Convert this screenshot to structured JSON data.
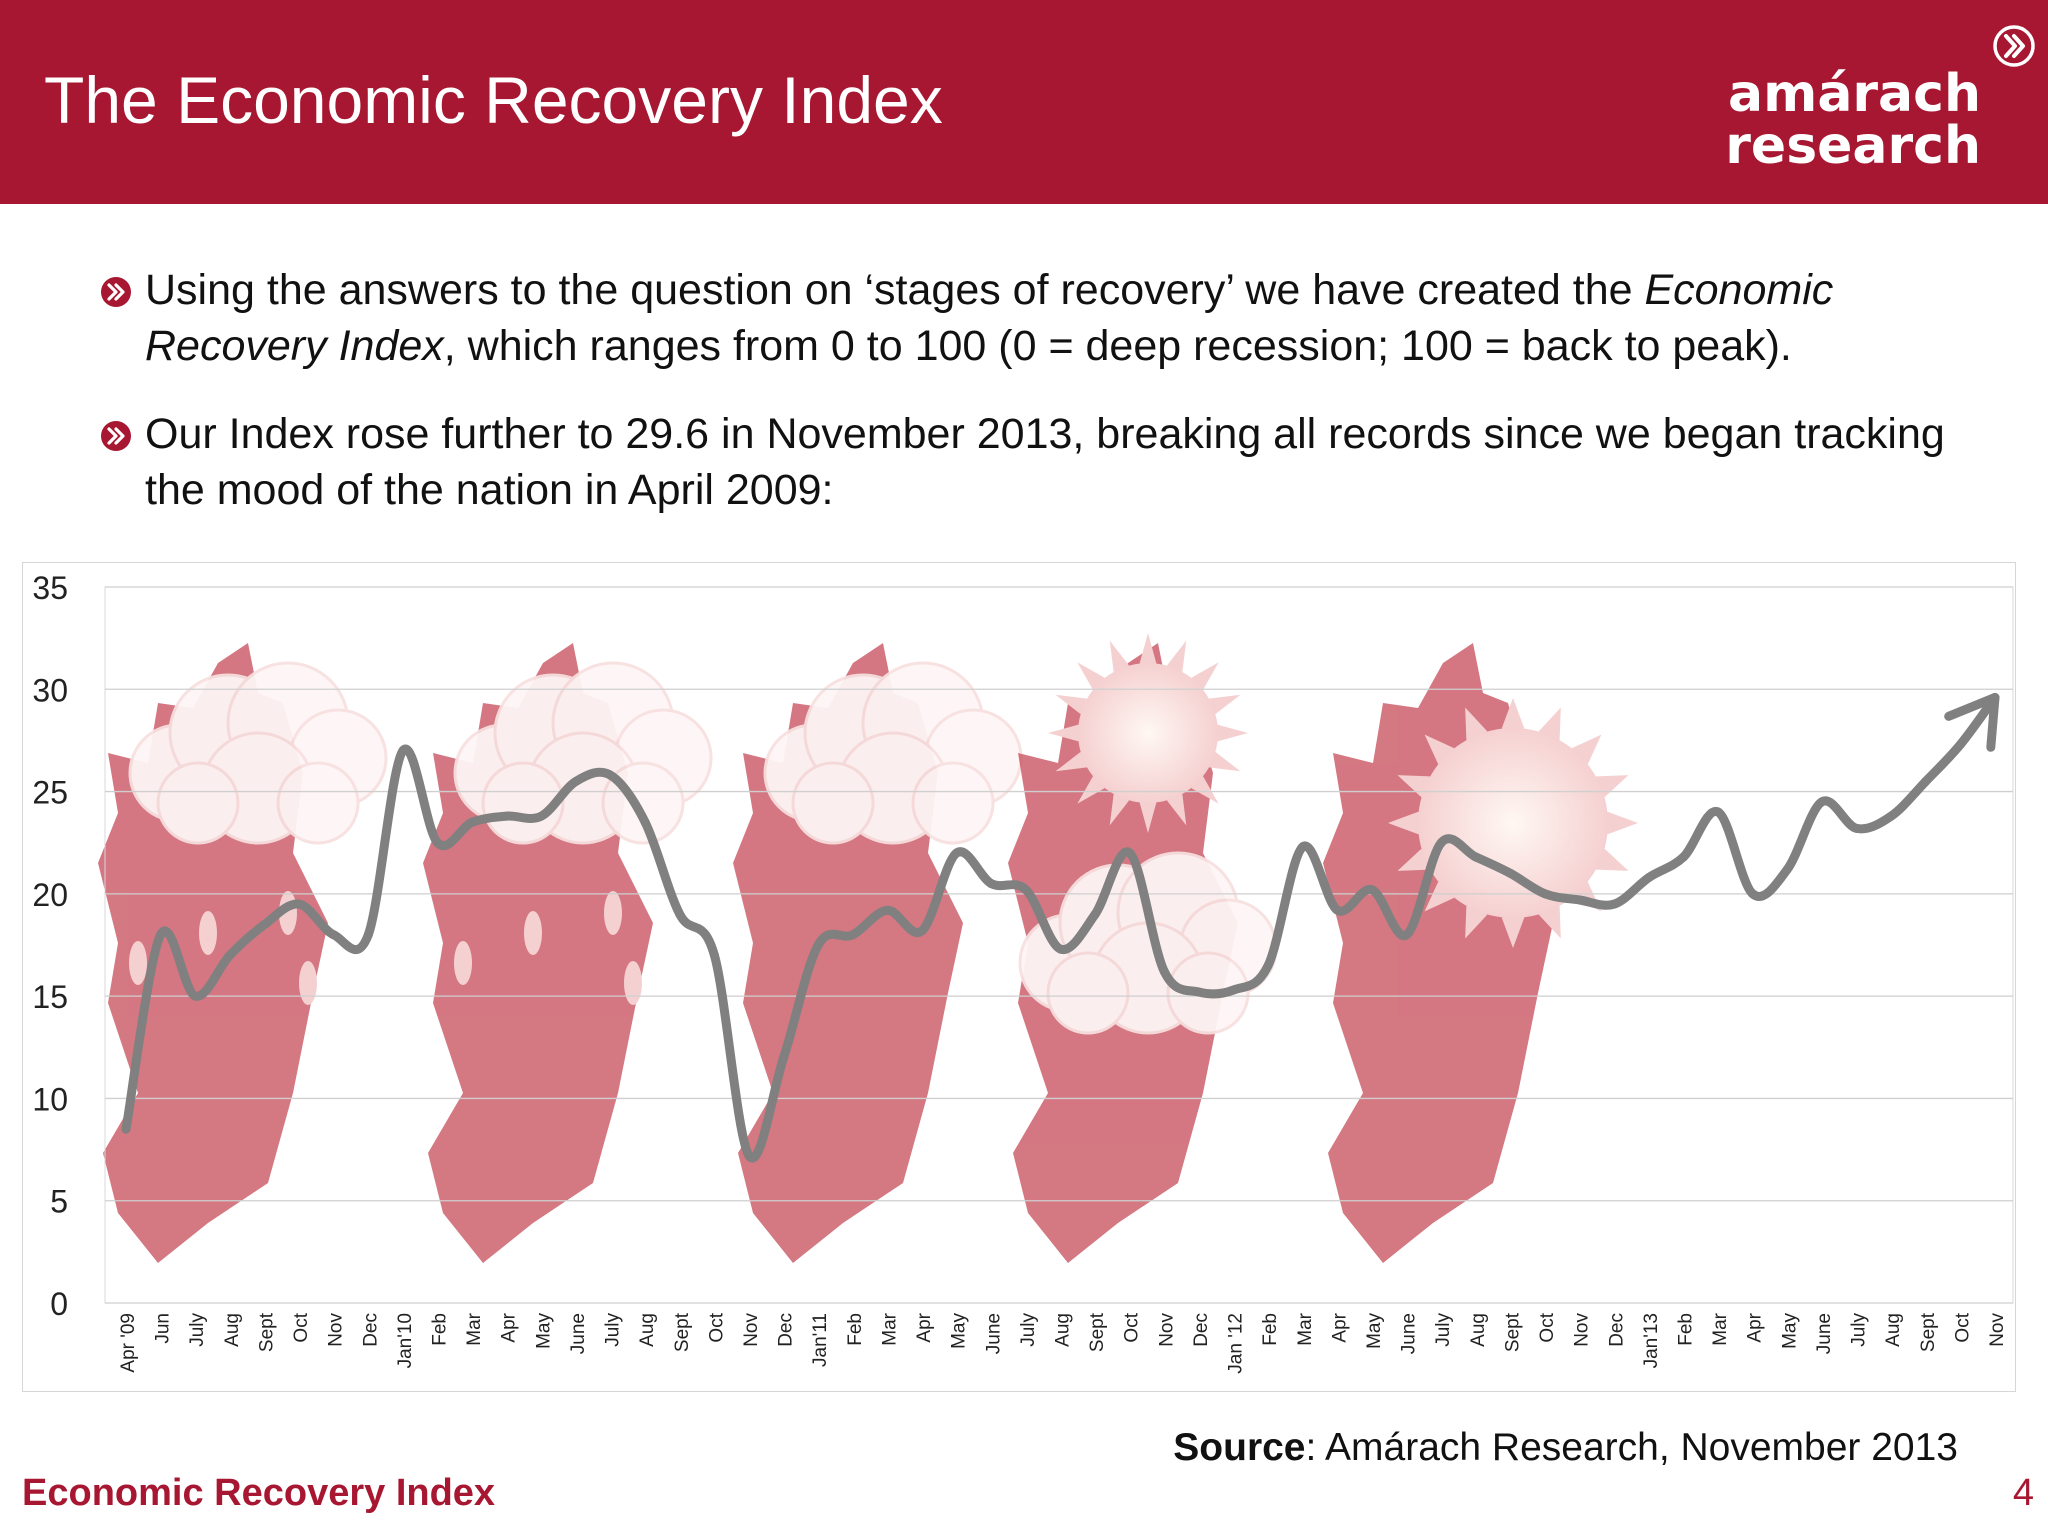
{
  "slide": {
    "title": "The Economic Recovery Index",
    "logo": {
      "line1": "amárach",
      "line2": "research"
    },
    "bullet1": {
      "part1": "Using the answers to the question on ‘stages of recovery’ we have created the ",
      "italic1": "Economic Recovery Index",
      "part2": ", which ranges from 0 to 100 (0 = deep recession; 100 = back to peak)."
    },
    "bullet2": "Our Index rose further to 29.6 in November 2013, breaking all records since we began tracking the mood of the nation in April 2009:",
    "source_label": "Source",
    "source_text": ": Amárach Research, November 2013",
    "footer_label": "Economic Recovery Index",
    "page_number": "4"
  },
  "colors": {
    "brand": "#a81732",
    "line": "#808080",
    "map_fill": "#c8525f",
    "cloud": "#fdf3f3"
  },
  "chart_data": {
    "type": "line",
    "ylim": [
      0,
      35
    ],
    "yticks": [
      0,
      5,
      10,
      15,
      20,
      25,
      30,
      35
    ],
    "grid": true,
    "end_marker": "arrow",
    "background_icons": [
      "map-rain-cloud-icon",
      "map-rain-cloud-icon",
      "map-cloud-icon",
      "map-sun-cloud-icon",
      "map-sun-icon"
    ],
    "categories": [
      "Apr '09",
      "Jun",
      "July",
      "Aug",
      "Sept",
      "Oct",
      "Nov",
      "Dec",
      "Jan'10",
      "Feb",
      "Mar",
      "Apr",
      "May",
      "June",
      "July",
      "Aug",
      "Sept",
      "Oct",
      "Nov",
      "Dec",
      "Jan'11",
      "Feb",
      "Mar",
      "Apr",
      "May",
      "June",
      "July",
      "Aug",
      "Sept",
      "Oct",
      "Nov",
      "Dec",
      "Jan '12",
      "Feb",
      "Mar",
      "Apr",
      "May",
      "June",
      "July",
      "Aug",
      "Sept",
      "Oct",
      "Nov",
      "Dec",
      "Jan'13",
      "Feb",
      "Mar",
      "Apr",
      "May",
      "June",
      "July",
      "Aug",
      "Sept",
      "Oct",
      "Nov"
    ],
    "values": [
      8.5,
      18,
      15,
      17,
      18.5,
      19.5,
      18,
      18,
      27,
      22.5,
      23.5,
      23.8,
      23.8,
      25.5,
      25.8,
      23.5,
      19,
      17,
      7.2,
      12,
      17.5,
      18,
      19.2,
      18.2,
      22,
      20.5,
      20.2,
      17.3,
      19,
      22,
      16.2,
      15.2,
      15.3,
      16.5,
      22.3,
      19.2,
      20.2,
      18,
      22.5,
      21.8,
      21,
      20,
      19.7,
      19.5,
      20.8,
      21.8,
      24,
      20,
      21.2,
      24.5,
      23.2,
      23.8,
      25.5,
      27.3,
      29.6
    ]
  }
}
